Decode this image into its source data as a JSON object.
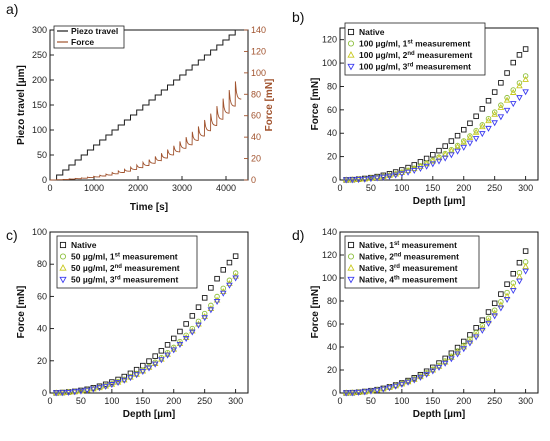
{
  "panel_labels": [
    "a)",
    "b)",
    "c)",
    "d)"
  ],
  "colors": {
    "black": "#1a1a1a",
    "green": "#8dbf3d",
    "yellow": "#c8c81e",
    "blue": "#3c3cf0",
    "brown": "#a0522d"
  },
  "chart_data": [
    {
      "id": "a",
      "type": "line",
      "xlabel": "Time [s]",
      "ylabel_left": "Piezo travel [µm]",
      "ylabel_right": "Force [mN]",
      "xlim": [
        0,
        4500
      ],
      "ylim_left": [
        0,
        300
      ],
      "ylim_right": [
        0,
        140
      ],
      "x_ticks": [
        0,
        1000,
        2000,
        3000,
        4000
      ],
      "y_ticks_left": [
        0,
        50,
        100,
        150,
        200,
        250,
        300
      ],
      "y_ticks_right": [
        0,
        20,
        40,
        60,
        80,
        100,
        120,
        140
      ],
      "legend": [
        "Piezo travel",
        "Force"
      ],
      "series": [
        {
          "name": "Piezo travel",
          "axis": "left",
          "step_start_s": 150,
          "step_interval_s": 140,
          "step_size_um": 10,
          "max_um": 300
        },
        {
          "name": "Force",
          "axis": "right",
          "peaks_mN": [
            0.3,
            0.6,
            1,
            1.5,
            2,
            2.7,
            3.5,
            4.5,
            5.6,
            7,
            8.5,
            10,
            12,
            14,
            16.5,
            19,
            22,
            25,
            28.5,
            32,
            36,
            40,
            45,
            50,
            56,
            62,
            69,
            76,
            84,
            92
          ]
        }
      ]
    },
    {
      "id": "b",
      "type": "scatter",
      "xlabel": "Depth [µm]",
      "ylabel": "Force [mN]",
      "xlim": [
        0,
        320
      ],
      "ylim": [
        0,
        130
      ],
      "x_ticks": [
        0,
        50,
        100,
        150,
        200,
        250,
        300
      ],
      "y_ticks": [
        0,
        20,
        40,
        60,
        80,
        100,
        120
      ],
      "depths": [
        10,
        20,
        30,
        40,
        50,
        60,
        70,
        80,
        90,
        100,
        110,
        120,
        130,
        140,
        150,
        160,
        170,
        180,
        190,
        200,
        210,
        220,
        230,
        240,
        250,
        260,
        270,
        280,
        290,
        300
      ],
      "series": [
        {
          "name": "Native",
          "sup": "",
          "tail": "",
          "marker": "square",
          "color": "#1a1a1a",
          "values": [
            0.1,
            0.3,
            0.7,
            1.3,
            2.0,
            2.9,
            4.0,
            5.3,
            6.8,
            8.6,
            10.6,
            12.9,
            15.5,
            18.4,
            21.6,
            25.1,
            29.0,
            33.3,
            37.9,
            43.0,
            48.5,
            54.5,
            60.9,
            67.8,
            75.2,
            83.1,
            91.5,
            100.4,
            107.0,
            112.0
          ]
        },
        {
          "name": "100 µg/ml, 1",
          "sup": "st",
          "tail": " measurement",
          "marker": "circle",
          "color": "#8dbf3d",
          "values": [
            0.1,
            0.2,
            0.5,
            0.9,
            1.5,
            2.2,
            3.0,
            4.0,
            5.2,
            6.6,
            8.2,
            10.0,
            12.1,
            14.3,
            16.8,
            19.6,
            22.6,
            25.9,
            29.5,
            33.4,
            37.6,
            42.2,
            47.1,
            52.4,
            58.0,
            64.0,
            70.4,
            77.0,
            83.0,
            89.0
          ]
        },
        {
          "name": "100 µg/ml, 2",
          "sup": "nd",
          "tail": " measurement",
          "marker": "triangle-up",
          "color": "#c8c81e",
          "values": [
            0.1,
            0.2,
            0.5,
            0.9,
            1.4,
            2.1,
            2.9,
            3.9,
            5.0,
            6.3,
            7.9,
            9.6,
            11.6,
            13.8,
            16.2,
            18.9,
            21.8,
            25.0,
            28.5,
            32.3,
            36.4,
            40.8,
            45.6,
            50.7,
            56.2,
            62.0,
            68.2,
            74.8,
            80.5,
            86.0
          ]
        },
        {
          "name": "100 µg/ml, 3",
          "sup": "rd",
          "tail": " measurement",
          "marker": "triangle-down",
          "color": "#3c3cf0",
          "values": [
            0.1,
            0.2,
            0.4,
            0.7,
            1.2,
            1.8,
            2.5,
            3.3,
            4.3,
            5.4,
            6.7,
            8.2,
            9.9,
            11.8,
            13.9,
            16.2,
            18.8,
            21.6,
            24.7,
            28.0,
            31.6,
            35.5,
            39.7,
            44.2,
            49.0,
            54.1,
            59.6,
            65.4,
            70.5,
            75.5
          ]
        }
      ]
    },
    {
      "id": "c",
      "type": "scatter",
      "xlabel": "Depth [µm]",
      "ylabel": "Force [mN]",
      "xlim": [
        0,
        320
      ],
      "ylim": [
        0,
        100
      ],
      "x_ticks": [
        0,
        50,
        100,
        150,
        200,
        250,
        300
      ],
      "y_ticks": [
        0,
        20,
        40,
        60,
        80,
        100
      ],
      "depths": [
        10,
        20,
        30,
        40,
        50,
        60,
        70,
        80,
        90,
        100,
        110,
        120,
        130,
        140,
        150,
        160,
        170,
        180,
        190,
        200,
        210,
        220,
        230,
        240,
        250,
        260,
        270,
        280,
        290,
        300
      ],
      "series": [
        {
          "name": "Native",
          "sup": "",
          "tail": "",
          "marker": "square",
          "color": "#1a1a1a",
          "values": [
            0.1,
            0.3,
            0.6,
            1.0,
            1.6,
            2.3,
            3.2,
            4.2,
            5.4,
            6.8,
            8.4,
            10.2,
            12.2,
            14.5,
            17.0,
            19.8,
            22.9,
            26.2,
            29.9,
            33.9,
            38.2,
            42.9,
            47.9,
            53.3,
            59.1,
            65.3,
            71.0,
            76.5,
            81.0,
            85.0
          ]
        },
        {
          "name": "50 µg/ml, 1",
          "sup": "st",
          "tail": " measurement",
          "marker": "circle",
          "color": "#8dbf3d",
          "values": [
            0.1,
            0.2,
            0.5,
            0.8,
            1.3,
            1.9,
            2.6,
            3.5,
            4.5,
            5.7,
            7.0,
            8.5,
            10.2,
            12.1,
            14.2,
            16.5,
            19.1,
            21.9,
            25.0,
            28.3,
            31.9,
            35.8,
            40.0,
            44.5,
            49.3,
            54.4,
            59.9,
            65.0,
            70.0,
            74.5
          ]
        },
        {
          "name": "50 µg/ml, 2",
          "sup": "nd",
          "tail": " measurement",
          "marker": "triangle-up",
          "color": "#c8c81e",
          "values": [
            0.1,
            0.2,
            0.4,
            0.8,
            1.2,
            1.8,
            2.5,
            3.3,
            4.3,
            5.4,
            6.7,
            8.1,
            9.8,
            11.6,
            13.6,
            15.9,
            18.3,
            21.0,
            24.0,
            27.2,
            30.7,
            34.4,
            38.5,
            42.8,
            47.5,
            52.4,
            57.7,
            63.0,
            68.0,
            72.5
          ]
        },
        {
          "name": "50 µg/ml, 3",
          "sup": "rd",
          "tail": " measurement",
          "marker": "triangle-down",
          "color": "#3c3cf0",
          "values": [
            0.1,
            0.2,
            0.4,
            0.8,
            1.2,
            1.8,
            2.5,
            3.3,
            4.2,
            5.3,
            6.6,
            8.0,
            9.6,
            11.4,
            13.4,
            15.6,
            18.0,
            20.7,
            23.6,
            26.8,
            30.2,
            33.9,
            37.9,
            42.2,
            46.8,
            51.7,
            56.9,
            62.0,
            67.0,
            71.5
          ]
        }
      ]
    },
    {
      "id": "d",
      "type": "scatter",
      "xlabel": "Depth [µm]",
      "ylabel": "Force [mN]",
      "xlim": [
        0,
        320
      ],
      "ylim": [
        0,
        140
      ],
      "x_ticks": [
        0,
        50,
        100,
        150,
        200,
        250,
        300
      ],
      "y_ticks": [
        0,
        20,
        40,
        60,
        80,
        100,
        120,
        140
      ],
      "depths": [
        10,
        20,
        30,
        40,
        50,
        60,
        70,
        80,
        90,
        100,
        110,
        120,
        130,
        140,
        150,
        160,
        170,
        180,
        190,
        200,
        210,
        220,
        230,
        240,
        250,
        260,
        270,
        280,
        290,
        300
      ],
      "series": [
        {
          "name": "Native, 1",
          "sup": "st",
          "tail": " measurement",
          "marker": "square",
          "color": "#1a1a1a",
          "values": [
            0.1,
            0.3,
            0.7,
            1.3,
            2.0,
            2.9,
            4.0,
            5.3,
            6.9,
            8.7,
            10.8,
            13.2,
            15.9,
            18.9,
            22.3,
            26.0,
            30.1,
            34.6,
            39.5,
            44.8,
            50.5,
            56.7,
            63.3,
            70.4,
            78.0,
            86.0,
            94.6,
            103.7,
            113.3,
            123.4
          ]
        },
        {
          "name": "Native, 2",
          "sup": "nd",
          "tail": " measurement",
          "marker": "circle",
          "color": "#8dbf3d",
          "values": [
            0.1,
            0.3,
            0.6,
            1.2,
            1.8,
            2.7,
            3.7,
            4.9,
            6.4,
            8.1,
            10.0,
            12.2,
            14.7,
            17.5,
            20.6,
            24.0,
            27.8,
            32.0,
            36.5,
            41.4,
            46.7,
            52.4,
            58.5,
            65.0,
            72.0,
            79.4,
            87.3,
            95.7,
            104.6,
            114.0
          ]
        },
        {
          "name": "Native, 3",
          "sup": "rd",
          "tail": " measurement",
          "marker": "triangle-up",
          "color": "#c8c81e",
          "values": [
            0.1,
            0.3,
            0.6,
            1.1,
            1.8,
            2.6,
            3.6,
            4.8,
            6.2,
            7.9,
            9.7,
            11.8,
            14.2,
            16.9,
            19.9,
            23.2,
            26.9,
            30.9,
            35.3,
            40.0,
            45.1,
            50.6,
            56.5,
            62.8,
            69.6,
            76.7,
            84.3,
            92.4,
            101.0,
            110.0
          ]
        },
        {
          "name": "Native, 4",
          "sup": "th",
          "tail": " measurement",
          "marker": "triangle-down",
          "color": "#3c3cf0",
          "values": [
            0.1,
            0.2,
            0.6,
            1.1,
            1.7,
            2.5,
            3.5,
            4.6,
            6.0,
            7.6,
            9.4,
            11.4,
            13.7,
            16.3,
            19.2,
            22.4,
            25.9,
            29.8,
            34.0,
            38.6,
            43.5,
            48.8,
            54.5,
            60.6,
            67.1,
            74.0,
            81.4,
            89.2,
            97.4,
            106.0
          ]
        }
      ]
    }
  ]
}
